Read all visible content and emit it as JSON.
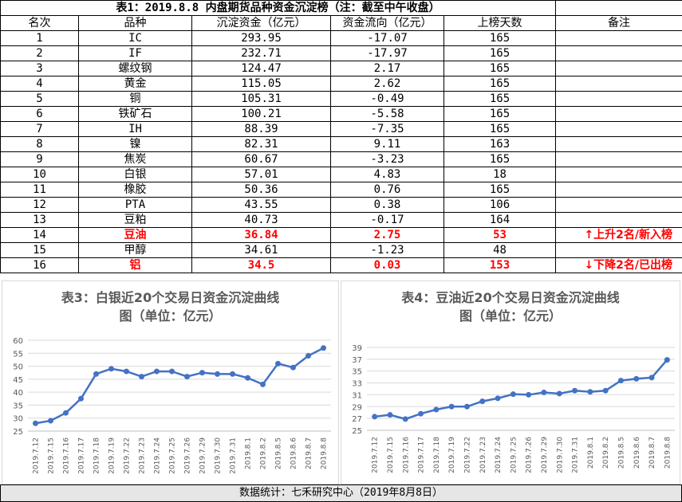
{
  "table": {
    "title": "表1：2019.8.8 内盘期货品种资金沉淀榜（注：截至中午收盘）",
    "headers": [
      "名次",
      "品种",
      "沉淀资金（亿元）",
      "资金流向（亿元）",
      "上榜天数",
      "备注"
    ],
    "rows": [
      {
        "rank": "1",
        "name": "IC",
        "fund": "293.95",
        "flow": "-17.07",
        "days": "165",
        "note": ""
      },
      {
        "rank": "2",
        "name": "IF",
        "fund": "232.71",
        "flow": "-17.97",
        "days": "165",
        "note": ""
      },
      {
        "rank": "3",
        "name": "螺纹钢",
        "fund": "124.47",
        "flow": "2.17",
        "days": "165",
        "note": ""
      },
      {
        "rank": "4",
        "name": "黄金",
        "fund": "115.05",
        "flow": "2.62",
        "days": "165",
        "note": ""
      },
      {
        "rank": "5",
        "name": "铜",
        "fund": "105.31",
        "flow": "-0.49",
        "days": "165",
        "note": ""
      },
      {
        "rank": "6",
        "name": "铁矿石",
        "fund": "100.21",
        "flow": "-5.58",
        "days": "165",
        "note": ""
      },
      {
        "rank": "7",
        "name": "IH",
        "fund": "88.39",
        "flow": "-7.35",
        "days": "165",
        "note": ""
      },
      {
        "rank": "8",
        "name": "镍",
        "fund": "82.31",
        "flow": "9.11",
        "days": "163",
        "note": ""
      },
      {
        "rank": "9",
        "name": "焦炭",
        "fund": "60.67",
        "flow": "-3.23",
        "days": "165",
        "note": ""
      },
      {
        "rank": "10",
        "name": "白银",
        "fund": "57.01",
        "flow": "4.83",
        "days": "18",
        "note": ""
      },
      {
        "rank": "11",
        "name": "橡胶",
        "fund": "50.36",
        "flow": "0.76",
        "days": "165",
        "note": ""
      },
      {
        "rank": "12",
        "name": "PTA",
        "fund": "43.55",
        "flow": "0.38",
        "days": "106",
        "note": ""
      },
      {
        "rank": "13",
        "name": "豆粕",
        "fund": "40.73",
        "flow": "-0.17",
        "days": "164",
        "note": ""
      },
      {
        "rank": "14",
        "name": "豆油",
        "fund": "36.84",
        "flow": "2.75",
        "days": "53",
        "note": "↑上升2名/新入榜",
        "highlight": true
      },
      {
        "rank": "15",
        "name": "甲醇",
        "fund": "34.61",
        "flow": "-1.23",
        "days": "48",
        "note": ""
      },
      {
        "rank": "16",
        "name": "铝",
        "fund": "34.5",
        "flow": "0.03",
        "days": "153",
        "note": "↓下降2名/已出榜",
        "highlight": true
      }
    ]
  },
  "chart_data": [
    {
      "type": "line",
      "title": "表3：白银近20个交易日资金沉淀曲线图（单位：亿元）",
      "title_lines": [
        "表3：白银近20个交易日资金沉淀曲线",
        "图（单位：亿元）"
      ],
      "categories": [
        "2019.7.12",
        "2019.7.15",
        "2019.7.16",
        "2019.7.17",
        "2019.7.18",
        "2019.7.19",
        "2019.7.22",
        "2019.7.23",
        "2019.7.24",
        "2019.7.25",
        "2019.7.26",
        "2019.7.29",
        "2019.7.30",
        "2019.7.31",
        "2019.8.1",
        "2019.8.2",
        "2019.8.5",
        "2019.8.6",
        "2019.8.7",
        "2019.8.8"
      ],
      "values": [
        28,
        29,
        32,
        37.5,
        47,
        49,
        48,
        46,
        48,
        48,
        46,
        47.5,
        47,
        47,
        45.5,
        43,
        51,
        49.5,
        54,
        57
      ],
      "ylim": [
        25,
        60
      ],
      "yticks": [
        25,
        30,
        35,
        40,
        45,
        50,
        55,
        60
      ],
      "grid": true,
      "color": "#4472c4"
    },
    {
      "type": "line",
      "title": "表4：豆油近20个交易日资金沉淀曲线图（单位：亿元）",
      "title_lines": [
        "表4：豆油近20个交易日资金沉淀曲线",
        "图（单位：亿元）"
      ],
      "categories": [
        "2019.7.12",
        "2019.7.15",
        "2019.7.16",
        "2019.7.17",
        "2019.7.18",
        "2019.7.19",
        "2019.7.22",
        "2019.7.23",
        "2019.7.24",
        "2019.7.25",
        "2019.7.26",
        "2019.7.29",
        "2019.7.30",
        "2019.7.31",
        "2019.8.1",
        "2019.8.2",
        "2019.8.5",
        "2019.8.6",
        "2019.8.7",
        "2019.8.8"
      ],
      "values": [
        27.3,
        27.6,
        26.9,
        27.8,
        28.5,
        29,
        29,
        29.9,
        30.4,
        31.1,
        31,
        31.4,
        31.2,
        31.7,
        31.5,
        31.7,
        33.4,
        33.7,
        33.9,
        36.9
      ],
      "ylim": [
        25,
        39
      ],
      "yticks": [
        25,
        27,
        29,
        31,
        33,
        35,
        37,
        39
      ],
      "grid": true,
      "color": "#4472c4"
    }
  ],
  "footer": "数据统计：七禾研究中心（2019年8月8日）"
}
